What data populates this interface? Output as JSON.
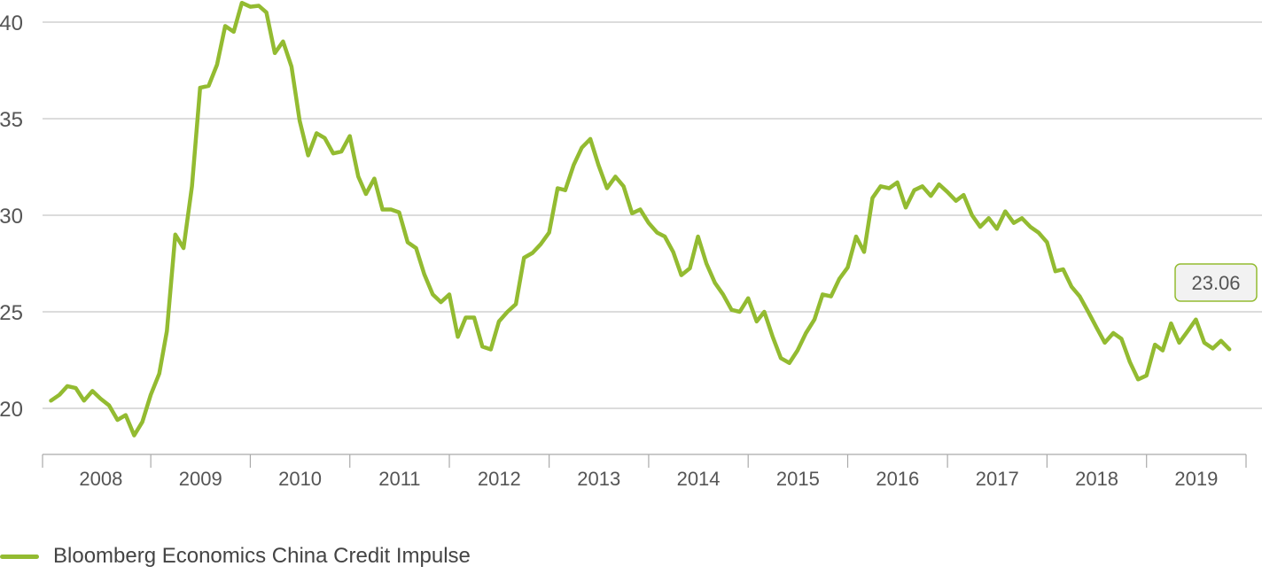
{
  "chart_data": {
    "type": "line",
    "title": "",
    "xlabel": "",
    "ylabel": "",
    "ylim": [
      18,
      41
    ],
    "yticks": [
      20,
      25,
      30,
      35,
      40
    ],
    "xlim": [
      "2007-12-01",
      "2020-01-01"
    ],
    "year_labels": [
      "2008",
      "2009",
      "2010",
      "2011",
      "2012",
      "2013",
      "2014",
      "2015",
      "2016",
      "2017",
      "2018",
      "2019"
    ],
    "grid": "horizontal",
    "line_color": "#93bb31",
    "series": [
      {
        "name": "Bloomberg Economics China Credit Impulse",
        "x": [
          "2008-01",
          "2008-02",
          "2008-03",
          "2008-04",
          "2008-05",
          "2008-06",
          "2008-07",
          "2008-08",
          "2008-09",
          "2008-10",
          "2008-11",
          "2008-12",
          "2009-01",
          "2009-02",
          "2009-03",
          "2009-04",
          "2009-05",
          "2009-06",
          "2009-07",
          "2009-08",
          "2009-09",
          "2009-10",
          "2009-11",
          "2009-12",
          "2010-01",
          "2010-02",
          "2010-03",
          "2010-04",
          "2010-05",
          "2010-06",
          "2010-07",
          "2010-08",
          "2010-09",
          "2010-10",
          "2010-11",
          "2010-12",
          "2011-01",
          "2011-02",
          "2011-03",
          "2011-04",
          "2011-05",
          "2011-06",
          "2011-07",
          "2011-08",
          "2011-09",
          "2011-10",
          "2011-11",
          "2011-12",
          "2012-01",
          "2012-02",
          "2012-03",
          "2012-04",
          "2012-05",
          "2012-06",
          "2012-07",
          "2012-08",
          "2012-09",
          "2012-10",
          "2012-11",
          "2012-12",
          "2013-01",
          "2013-02",
          "2013-03",
          "2013-04",
          "2013-05",
          "2013-06",
          "2013-07",
          "2013-08",
          "2013-09",
          "2013-10",
          "2013-11",
          "2013-12",
          "2014-01",
          "2014-02",
          "2014-03",
          "2014-04",
          "2014-05",
          "2014-06",
          "2014-07",
          "2014-08",
          "2014-09",
          "2014-10",
          "2014-11",
          "2014-12",
          "2015-01",
          "2015-02",
          "2015-03",
          "2015-04",
          "2015-05",
          "2015-06",
          "2015-07",
          "2015-08",
          "2015-09",
          "2015-10",
          "2015-11",
          "2015-12",
          "2016-01",
          "2016-02",
          "2016-03",
          "2016-04",
          "2016-05",
          "2016-06",
          "2016-07",
          "2016-08",
          "2016-09",
          "2016-10",
          "2016-11",
          "2016-12",
          "2017-01",
          "2017-02",
          "2017-03",
          "2017-04",
          "2017-05",
          "2017-06",
          "2017-07",
          "2017-08",
          "2017-09",
          "2017-10",
          "2017-11",
          "2017-12",
          "2018-01",
          "2018-02",
          "2018-03",
          "2018-04",
          "2018-05",
          "2018-06",
          "2018-07",
          "2018-08",
          "2018-09",
          "2018-10",
          "2018-11",
          "2018-12",
          "2019-01",
          "2019-02",
          "2019-03",
          "2019-04",
          "2019-05",
          "2019-06",
          "2019-07",
          "2019-08",
          "2019-09",
          "2019-10",
          "2019-11"
        ],
        "y": [
          20.4,
          20.7,
          21.15,
          21.05,
          20.4,
          20.9,
          20.5,
          20.15,
          19.4,
          19.65,
          18.6,
          19.3,
          20.7,
          21.8,
          24.0,
          29.0,
          28.3,
          31.5,
          36.6,
          36.7,
          37.8,
          39.8,
          39.5,
          41.0,
          40.8,
          40.85,
          40.5,
          38.4,
          39.0,
          37.7,
          34.9,
          33.1,
          34.25,
          34.0,
          33.2,
          33.3,
          34.1,
          32.0,
          31.1,
          31.9,
          30.3,
          30.3,
          30.15,
          28.6,
          28.3,
          26.95,
          25.9,
          25.5,
          25.9,
          23.7,
          24.7,
          24.7,
          23.2,
          23.05,
          24.5,
          25.0,
          25.4,
          27.8,
          28.05,
          28.5,
          29.1,
          31.4,
          31.3,
          32.6,
          33.5,
          33.95,
          32.6,
          31.4,
          32.0,
          31.5,
          30.1,
          30.3,
          29.6,
          29.1,
          28.9,
          28.1,
          26.9,
          27.25,
          28.9,
          27.5,
          26.5,
          25.9,
          25.1,
          25.0,
          25.7,
          24.5,
          25.0,
          23.7,
          22.6,
          22.35,
          23.0,
          23.9,
          24.6,
          25.9,
          25.8,
          26.7,
          27.3,
          28.9,
          28.1,
          30.9,
          31.5,
          31.4,
          31.7,
          30.4,
          31.3,
          31.5,
          31.0,
          31.6,
          31.2,
          30.75,
          31.05,
          30.0,
          29.4,
          29.85,
          29.3,
          30.2,
          29.6,
          29.85,
          29.4,
          29.1,
          28.6,
          27.1,
          27.2,
          26.3,
          25.8,
          25.0,
          24.2,
          23.4,
          23.9,
          23.6,
          22.4,
          21.5,
          21.7,
          23.3,
          23.0,
          24.4,
          23.4,
          24.0,
          24.6,
          23.4,
          23.1,
          23.5,
          23.06
        ]
      }
    ],
    "annotations": [
      {
        "text": "23.06",
        "x": "2019-11",
        "y": 23.06
      }
    ]
  },
  "legend": {
    "label": "Bloomberg Economics China Credit Impulse"
  }
}
